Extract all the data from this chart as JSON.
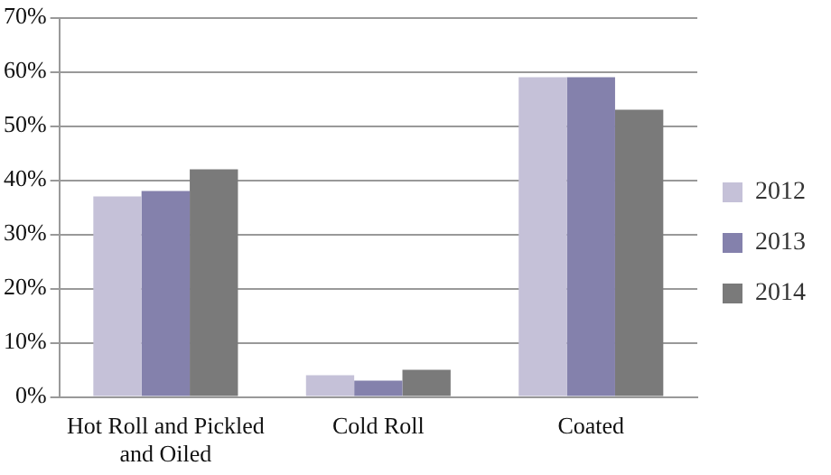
{
  "chart_data": {
    "type": "bar",
    "categories": [
      "Hot Roll and Pickled and Oiled",
      "Cold Roll",
      "Coated"
    ],
    "series": [
      {
        "name": "2012",
        "color": "#c5c1d8",
        "values": [
          37,
          4,
          59
        ]
      },
      {
        "name": "2013",
        "color": "#8481ac",
        "values": [
          38,
          3,
          59
        ]
      },
      {
        "name": "2014",
        "color": "#7a7a7a",
        "values": [
          42,
          5,
          53
        ]
      }
    ],
    "ylim": [
      0,
      70
    ],
    "yticks": [
      {
        "value": 0,
        "label": "0%"
      },
      {
        "value": 10,
        "label": "10%"
      },
      {
        "value": 20,
        "label": "20%"
      },
      {
        "value": 30,
        "label": "30%"
      },
      {
        "value": 40,
        "label": "40%"
      },
      {
        "value": 50,
        "label": "50%"
      },
      {
        "value": 60,
        "label": "60%"
      },
      {
        "value": 70,
        "label": "70%"
      }
    ],
    "grid": "y",
    "legend": "right"
  }
}
